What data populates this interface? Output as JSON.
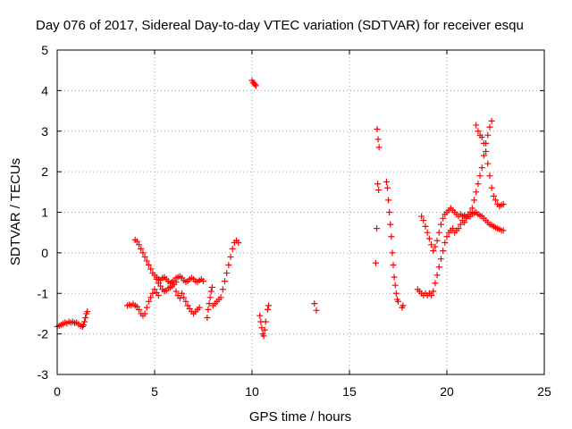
{
  "chart_data": {
    "type": "scatter",
    "title": "Day 076 of 2017, Sidereal Day-to-day VTEC variation (SDTVAR) for receiver esqu",
    "xlabel": "GPS time / hours",
    "ylabel": "SDTVAR / TECUs",
    "xlim": [
      0,
      25
    ],
    "ylim": [
      -3,
      5
    ],
    "xticks": [
      0,
      5,
      10,
      15,
      20,
      25
    ],
    "yticks": [
      -3,
      -2,
      -1,
      0,
      1,
      2,
      3,
      4,
      5
    ],
    "grid": true,
    "marker": "+",
    "color": "#ff0000",
    "series": [
      {
        "points": [
          [
            0.0,
            -1.82
          ],
          [
            0.1,
            -1.8
          ],
          [
            0.2,
            -1.78
          ],
          [
            0.3,
            -1.75
          ],
          [
            0.4,
            -1.72
          ],
          [
            0.5,
            -1.74
          ],
          [
            0.6,
            -1.7
          ],
          [
            0.7,
            -1.72
          ],
          [
            0.8,
            -1.7
          ],
          [
            0.9,
            -1.73
          ],
          [
            1.0,
            -1.72
          ],
          [
            1.1,
            -1.76
          ],
          [
            1.2,
            -1.8
          ],
          [
            1.3,
            -1.82
          ],
          [
            1.35,
            -1.78
          ],
          [
            1.4,
            -1.7
          ],
          [
            1.45,
            -1.6
          ],
          [
            1.5,
            -1.5
          ],
          [
            1.55,
            -1.45
          ],
          [
            3.6,
            -1.3
          ],
          [
            3.7,
            -1.28
          ],
          [
            3.8,
            -1.3
          ],
          [
            3.9,
            -1.26
          ],
          [
            4.0,
            -1.3
          ],
          [
            4.1,
            -1.33
          ],
          [
            4.0,
            0.32
          ],
          [
            4.1,
            0.28
          ],
          [
            4.2,
            0.2
          ],
          [
            4.3,
            0.1
          ],
          [
            4.4,
            0.0
          ],
          [
            4.5,
            -0.1
          ],
          [
            4.6,
            -0.2
          ],
          [
            4.7,
            -0.3
          ],
          [
            4.8,
            -0.4
          ],
          [
            4.9,
            -0.5
          ],
          [
            5.0,
            -0.55
          ],
          [
            5.1,
            -0.65
          ],
          [
            5.2,
            -0.75
          ],
          [
            5.3,
            -0.82
          ],
          [
            5.4,
            -0.9
          ],
          [
            5.5,
            -0.95
          ],
          [
            5.6,
            -0.93
          ],
          [
            5.7,
            -0.88
          ],
          [
            5.8,
            -0.85
          ],
          [
            5.9,
            -0.82
          ],
          [
            6.0,
            -0.78
          ],
          [
            6.1,
            -0.72
          ],
          [
            4.2,
            -1.4
          ],
          [
            4.3,
            -1.5
          ],
          [
            4.4,
            -1.55
          ],
          [
            4.5,
            -1.5
          ],
          [
            4.6,
            -1.35
          ],
          [
            4.7,
            -1.2
          ],
          [
            4.8,
            -1.1
          ],
          [
            4.9,
            -1.0
          ],
          [
            5.0,
            -0.9
          ],
          [
            5.1,
            -0.98
          ],
          [
            5.2,
            -1.05
          ],
          [
            5.1,
            -0.6
          ],
          [
            5.2,
            -0.65
          ],
          [
            5.3,
            -0.68
          ],
          [
            5.4,
            -0.62
          ],
          [
            5.5,
            -0.6
          ],
          [
            5.6,
            -0.65
          ],
          [
            5.7,
            -0.7
          ],
          [
            5.8,
            -0.75
          ],
          [
            5.9,
            -0.72
          ],
          [
            6.0,
            -0.68
          ],
          [
            6.1,
            -0.62
          ],
          [
            6.2,
            -0.6
          ],
          [
            6.3,
            -0.58
          ],
          [
            6.4,
            -0.62
          ],
          [
            6.5,
            -0.68
          ],
          [
            6.6,
            -0.72
          ],
          [
            6.7,
            -0.7
          ],
          [
            6.8,
            -0.65
          ],
          [
            6.9,
            -0.62
          ],
          [
            7.0,
            -0.65
          ],
          [
            7.1,
            -0.7
          ],
          [
            7.2,
            -0.72
          ],
          [
            7.3,
            -0.68
          ],
          [
            7.4,
            -0.65
          ],
          [
            7.5,
            -0.7
          ],
          [
            6.1,
            -0.95
          ],
          [
            6.2,
            -1.05
          ],
          [
            6.3,
            -1.12
          ],
          [
            6.4,
            -1.0
          ],
          [
            6.5,
            -1.1
          ],
          [
            6.6,
            -1.2
          ],
          [
            6.7,
            -1.3
          ],
          [
            6.8,
            -1.38
          ],
          [
            6.9,
            -1.45
          ],
          [
            7.0,
            -1.5
          ],
          [
            7.1,
            -1.45
          ],
          [
            7.2,
            -1.4
          ],
          [
            7.3,
            -1.35
          ],
          [
            7.7,
            -1.6
          ],
          [
            7.75,
            -1.4
          ],
          [
            7.8,
            -1.25
          ],
          [
            7.85,
            -1.1
          ],
          [
            7.9,
            -0.95
          ],
          [
            7.95,
            -0.85
          ],
          [
            8.0,
            -1.3
          ],
          [
            8.1,
            -1.25
          ],
          [
            8.2,
            -1.2
          ],
          [
            8.3,
            -1.15
          ],
          [
            8.4,
            -1.1
          ],
          [
            8.5,
            -0.9
          ],
          [
            8.6,
            -0.7
          ],
          [
            8.7,
            -0.5
          ],
          [
            8.8,
            -0.3
          ],
          [
            8.9,
            -0.1
          ],
          [
            9.0,
            0.1
          ],
          [
            9.1,
            0.25
          ],
          [
            9.2,
            0.3
          ],
          [
            9.3,
            0.25
          ],
          [
            10.0,
            4.25
          ],
          [
            10.05,
            4.2
          ],
          [
            10.1,
            4.18
          ],
          [
            10.15,
            4.15
          ],
          [
            10.2,
            4.12
          ],
          [
            10.4,
            -1.55
          ],
          [
            10.45,
            -1.7
          ],
          [
            10.5,
            -1.85
          ],
          [
            10.55,
            -2.0
          ],
          [
            10.6,
            -2.05
          ],
          [
            10.65,
            -1.9
          ],
          [
            10.7,
            -1.7
          ],
          [
            10.8,
            -1.4
          ],
          [
            10.85,
            -1.3
          ],
          [
            13.2,
            -1.25
          ],
          [
            13.3,
            -1.42
          ],
          [
            16.35,
            -0.25
          ],
          [
            16.4,
            0.6
          ],
          [
            16.45,
            1.7
          ],
          [
            16.5,
            1.55
          ],
          [
            16.42,
            3.05
          ],
          [
            16.47,
            2.8
          ],
          [
            16.52,
            2.6
          ],
          [
            16.9,
            1.75
          ],
          [
            16.95,
            1.6
          ],
          [
            17.0,
            1.3
          ],
          [
            17.05,
            1.0
          ],
          [
            17.1,
            0.7
          ],
          [
            17.15,
            0.4
          ],
          [
            17.2,
            0.0
          ],
          [
            17.25,
            -0.3
          ],
          [
            17.3,
            -0.6
          ],
          [
            17.35,
            -0.8
          ],
          [
            17.4,
            -1.0
          ],
          [
            17.45,
            -1.15
          ],
          [
            17.5,
            -1.2
          ],
          [
            17.7,
            -1.35
          ],
          [
            17.75,
            -1.3
          ],
          [
            18.5,
            -0.9
          ],
          [
            18.6,
            -0.95
          ],
          [
            18.7,
            -1.0
          ],
          [
            18.8,
            -1.05
          ],
          [
            18.9,
            -1.0
          ],
          [
            19.0,
            -1.05
          ],
          [
            19.1,
            -1.0
          ],
          [
            19.2,
            -1.05
          ],
          [
            19.3,
            -0.95
          ],
          [
            19.4,
            -0.75
          ],
          [
            19.5,
            -0.55
          ],
          [
            19.6,
            -0.35
          ],
          [
            19.7,
            -0.15
          ],
          [
            19.8,
            0.05
          ],
          [
            19.9,
            0.25
          ],
          [
            20.0,
            0.4
          ],
          [
            20.1,
            0.5
          ],
          [
            20.2,
            0.55
          ],
          [
            20.3,
            0.6
          ],
          [
            20.4,
            0.5
          ],
          [
            20.5,
            0.55
          ],
          [
            20.6,
            0.6
          ],
          [
            18.7,
            0.9
          ],
          [
            18.8,
            0.8
          ],
          [
            18.9,
            0.65
          ],
          [
            19.0,
            0.5
          ],
          [
            19.1,
            0.35
          ],
          [
            19.2,
            0.2
          ],
          [
            19.3,
            0.05
          ],
          [
            19.4,
            0.15
          ],
          [
            19.5,
            0.3
          ],
          [
            19.6,
            0.5
          ],
          [
            19.7,
            0.7
          ],
          [
            19.8,
            0.85
          ],
          [
            19.9,
            0.95
          ],
          [
            20.0,
            1.0
          ],
          [
            20.1,
            1.05
          ],
          [
            20.2,
            1.1
          ],
          [
            20.3,
            1.05
          ],
          [
            20.4,
            1.0
          ],
          [
            20.5,
            0.95
          ],
          [
            20.6,
            0.9
          ],
          [
            20.7,
            0.95
          ],
          [
            20.8,
            0.9
          ],
          [
            20.9,
            0.92
          ],
          [
            21.0,
            0.88
          ],
          [
            21.1,
            0.95
          ],
          [
            21.2,
            0.9
          ],
          [
            21.3,
            0.95
          ],
          [
            21.4,
            0.98
          ],
          [
            21.5,
            1.0
          ],
          [
            21.6,
            0.95
          ],
          [
            21.7,
            0.92
          ],
          [
            21.8,
            0.9
          ],
          [
            21.9,
            0.85
          ],
          [
            22.0,
            0.8
          ],
          [
            22.1,
            0.75
          ],
          [
            22.2,
            0.7
          ],
          [
            22.3,
            0.68
          ],
          [
            22.4,
            0.65
          ],
          [
            22.5,
            0.62
          ],
          [
            22.6,
            0.6
          ],
          [
            22.7,
            0.58
          ],
          [
            22.8,
            0.55
          ],
          [
            22.9,
            0.55
          ],
          [
            20.7,
            0.7
          ],
          [
            20.8,
            0.8
          ],
          [
            20.9,
            0.75
          ],
          [
            21.0,
            0.85
          ],
          [
            21.1,
            0.9
          ],
          [
            21.2,
            1.0
          ],
          [
            21.3,
            1.1
          ],
          [
            21.4,
            1.3
          ],
          [
            21.5,
            1.5
          ],
          [
            21.6,
            1.7
          ],
          [
            21.7,
            1.9
          ],
          [
            21.8,
            2.1
          ],
          [
            21.9,
            2.4
          ],
          [
            22.0,
            2.7
          ],
          [
            22.1,
            2.9
          ],
          [
            22.2,
            3.1
          ],
          [
            22.3,
            3.25
          ],
          [
            21.5,
            3.15
          ],
          [
            21.6,
            3.0
          ],
          [
            21.7,
            2.9
          ],
          [
            21.8,
            2.85
          ],
          [
            21.9,
            2.7
          ],
          [
            22.0,
            2.5
          ],
          [
            22.1,
            2.2
          ],
          [
            22.2,
            1.9
          ],
          [
            22.3,
            1.6
          ],
          [
            22.4,
            1.4
          ],
          [
            22.5,
            1.3
          ],
          [
            22.6,
            1.2
          ],
          [
            22.7,
            1.15
          ],
          [
            22.8,
            1.18
          ],
          [
            22.9,
            1.2
          ]
        ]
      }
    ]
  }
}
